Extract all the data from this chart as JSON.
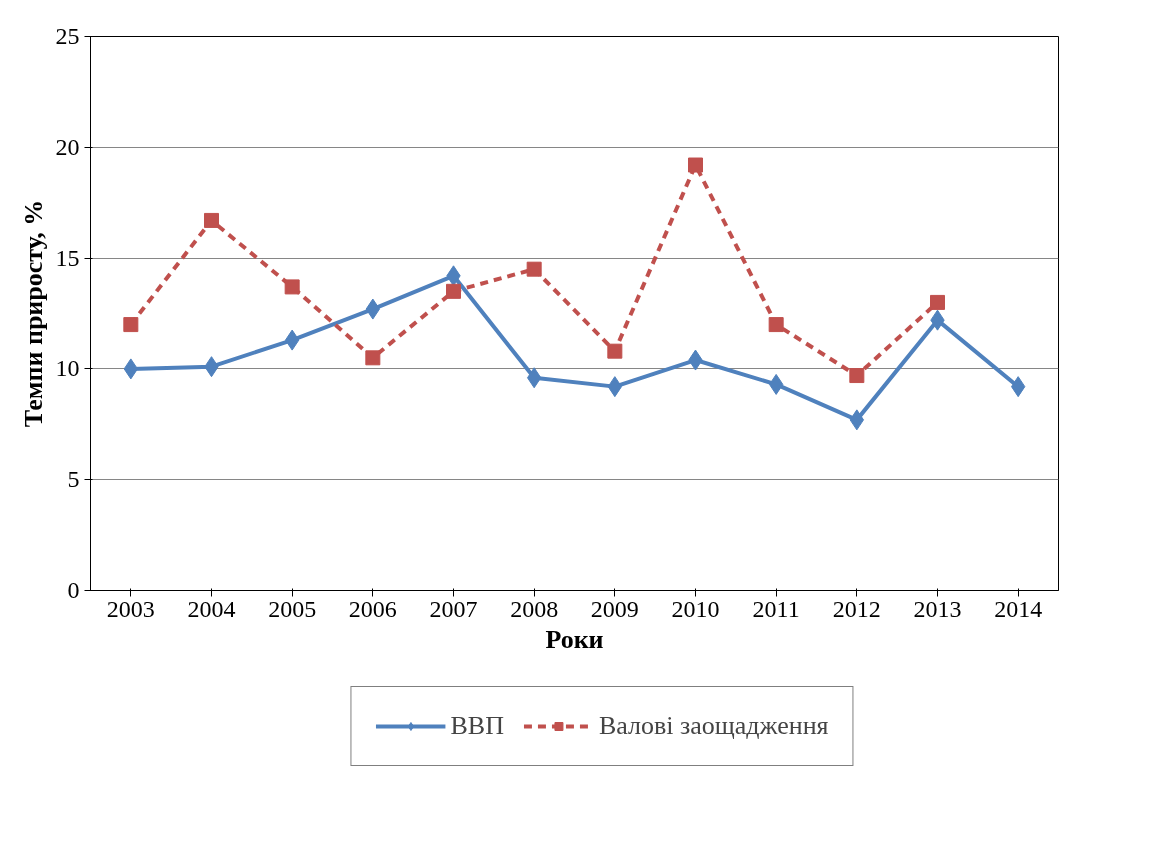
{
  "chart_data": {
    "type": "line",
    "xlabel": "Роки",
    "ylabel": "Темпи приросту, %",
    "categories": [
      "2003",
      "2004",
      "2005",
      "2006",
      "2007",
      "2008",
      "2009",
      "2010",
      "2011",
      "2012",
      "2013",
      "2014"
    ],
    "series": [
      {
        "name": "ВВП",
        "color": "#4f81bd",
        "marker": "diamond",
        "line_style": "solid",
        "values": [
          10.0,
          10.1,
          11.3,
          12.7,
          14.2,
          9.6,
          9.2,
          10.4,
          9.3,
          7.7,
          12.2,
          9.2
        ]
      },
      {
        "name": "Валові заощадження",
        "color": "#c0504d",
        "marker": "square",
        "line_style": "dashed",
        "values": [
          12.0,
          16.7,
          13.7,
          10.5,
          13.5,
          14.5,
          10.8,
          19.2,
          12.0,
          9.7,
          13.0,
          null
        ]
      }
    ],
    "ylim": [
      0,
      25
    ],
    "yticks": [
      0,
      5,
      10,
      15,
      20,
      25
    ],
    "grid": "y",
    "legend": "bottom"
  }
}
